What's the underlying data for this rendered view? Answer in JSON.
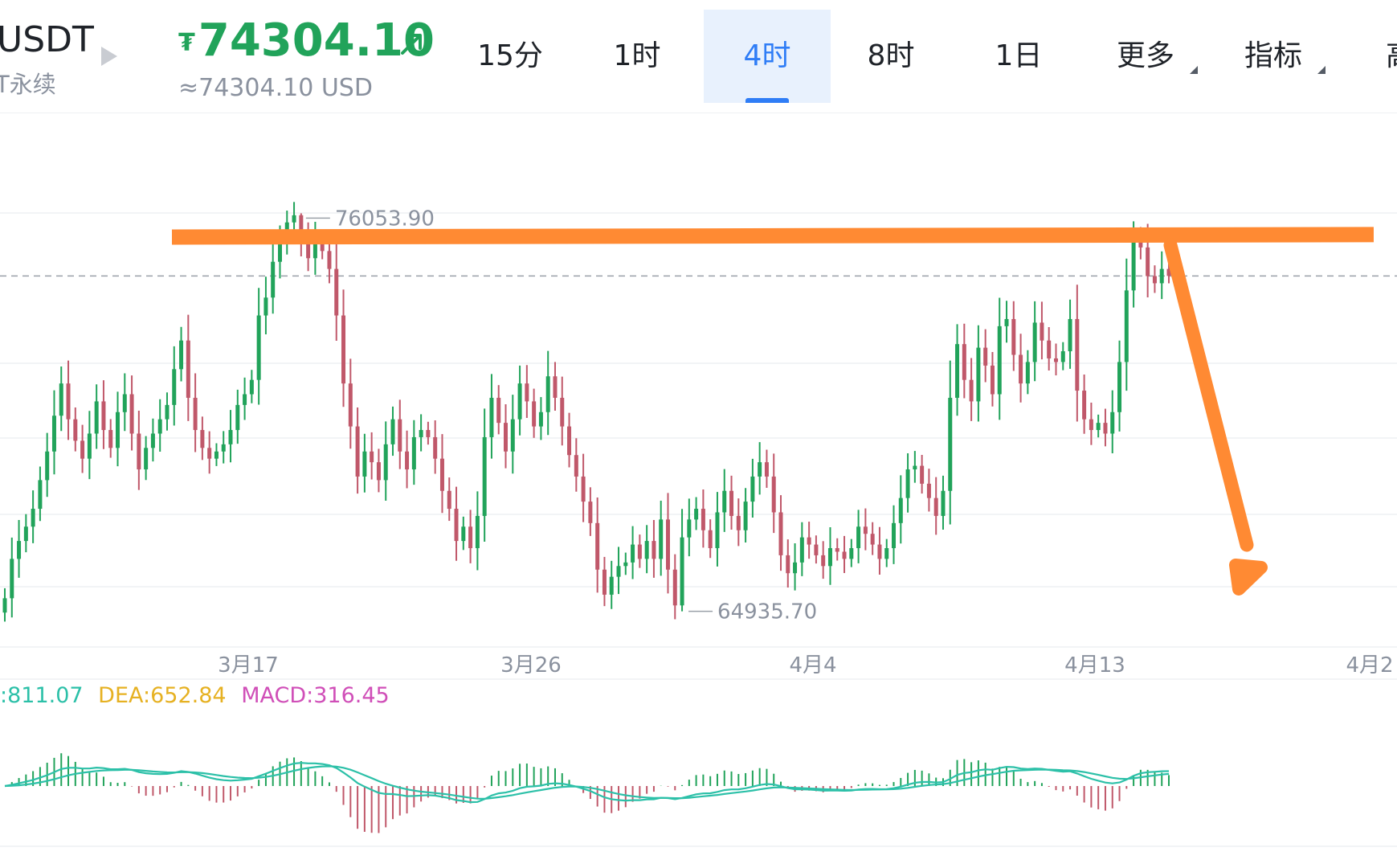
{
  "header": {
    "symbol": "USDT",
    "subtitle": "T永续",
    "price": "74304.10",
    "price_currency": "₮",
    "price_usd": "≈74304.10 USD"
  },
  "tabs": [
    {
      "label": "15分",
      "active": false
    },
    {
      "label": "1时",
      "active": false
    },
    {
      "label": "4时",
      "active": true
    },
    {
      "label": "8时",
      "active": false
    },
    {
      "label": "1日",
      "active": false
    },
    {
      "label": "更多",
      "active": false,
      "dropdown": true
    },
    {
      "label": "指标",
      "active": false,
      "dropdown": true
    },
    {
      "label": "高",
      "active": false
    }
  ],
  "chart_data": [
    {
      "type": "candlestick",
      "interval": "4时",
      "x_ticks": [
        "3月17",
        "3月26",
        "4月4",
        "4月13",
        "4月2"
      ],
      "y_range": [
        64500,
        76400
      ],
      "high_label": "76053.90",
      "low_label": "64935.70",
      "current_price": 74304.1,
      "grid": "horizontal",
      "colors": {
        "up": "#21a35a",
        "down": "#c0586a"
      },
      "annotations": [
        {
          "type": "resistance-line",
          "color": "#ff8a33",
          "from_price": 75390,
          "to_price": 75460
        },
        {
          "type": "down-arrow",
          "color": "#ff8a33"
        }
      ],
      "close_prices": [
        65300,
        66400,
        66900,
        67300,
        67800,
        68600,
        69400,
        70400,
        71300,
        70300,
        69700,
        69200,
        69900,
        70800,
        70000,
        69500,
        70500,
        71000,
        69900,
        68900,
        69500,
        69900,
        70300,
        70700,
        71700,
        72500,
        70900,
        70000,
        69500,
        69200,
        69400,
        69600,
        70000,
        70700,
        71000,
        71400,
        73200,
        73700,
        74700,
        75200,
        75800,
        76000,
        75400,
        74800,
        75300,
        75000,
        74500,
        73200,
        71300,
        70100,
        68700,
        69400,
        69100,
        68600,
        69600,
        70300,
        69400,
        68900,
        69800,
        70000,
        69800,
        69200,
        68300,
        67800,
        66900,
        67300,
        66700,
        67600,
        69800,
        70900,
        70200,
        69400,
        70300,
        71300,
        70800,
        70100,
        70500,
        71500,
        70900,
        70100,
        69300,
        68700,
        68000,
        67400,
        66100,
        65400,
        65900,
        66200,
        66300,
        66800,
        66400,
        66900,
        66400,
        67500,
        66100,
        65100,
        67000,
        67500,
        67800,
        67200,
        66700,
        67700,
        68300,
        67600,
        67200,
        68000,
        68700,
        69100,
        68700,
        67700,
        66500,
        66000,
        66300,
        67000,
        66800,
        66500,
        66200,
        66700,
        66600,
        66400,
        66700,
        67300,
        67100,
        66800,
        66400,
        66700,
        67400,
        68100,
        68900,
        69000,
        68500,
        68100,
        67600,
        68300,
        70900,
        72400,
        71400,
        70800,
        72300,
        71800,
        71000,
        72900,
        73100,
        72100,
        71300,
        71900,
        73000,
        72500,
        72000,
        71900,
        72200,
        73100,
        71100,
        70300,
        70000,
        70200,
        69900,
        70500,
        71900,
        73900,
        75300,
        75100,
        74300,
        74100,
        74500,
        74304.1
      ],
      "macd": {
        "DIF": 811.07,
        "DEA": 652.84,
        "MACD": 316.45,
        "dif_label": ":811.07",
        "dea_label": "DEA:652.84",
        "macd_label": "MACD:316.45"
      }
    }
  ]
}
